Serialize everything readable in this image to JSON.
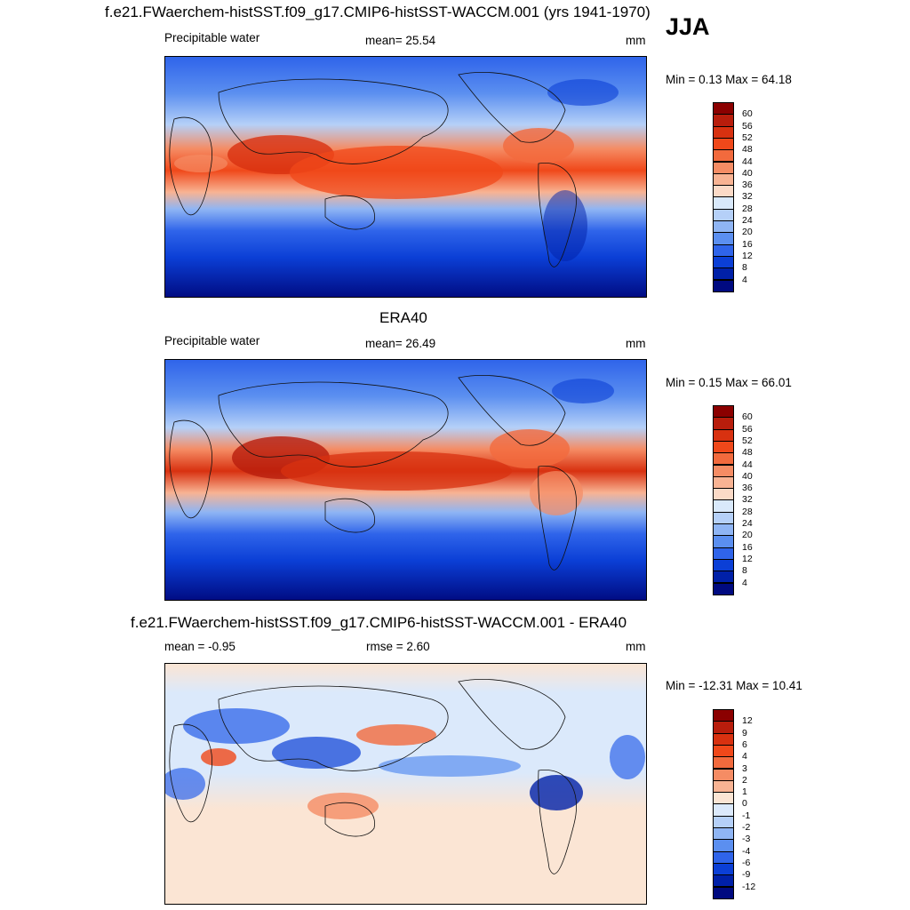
{
  "season": "JJA",
  "panels": [
    {
      "title": "f.e21.FWaerchem-histSST.f09_g17.CMIP6-histSST-WACCM.001 (yrs 1941-1970)",
      "left_label": "Precipitable water",
      "center_label": "mean=  25.54",
      "units": "mm",
      "minmax": "Min =   0.13 Max =  64.18",
      "colorbar": {
        "labels": [
          "60",
          "56",
          "52",
          "48",
          "44",
          "40",
          "36",
          "32",
          "28",
          "24",
          "20",
          "16",
          "12",
          "8",
          "4"
        ],
        "colors": [
          "#8b0000",
          "#b81d0c",
          "#d83110",
          "#f0481a",
          "#f26a3d",
          "#f58c64",
          "#f8b393",
          "#fbdac7",
          "#d9e9fb",
          "#b5d0f8",
          "#8fb5f4",
          "#5b8ff0",
          "#2f64ea",
          "#0b3fd6",
          "#0020a8",
          "#000a80"
        ]
      }
    },
    {
      "title": "ERA40",
      "left_label": "Precipitable water",
      "center_label": "mean=  26.49",
      "units": "mm",
      "minmax": "Min =   0.15 Max =  66.01",
      "colorbar": {
        "labels": [
          "60",
          "56",
          "52",
          "48",
          "44",
          "40",
          "36",
          "32",
          "28",
          "24",
          "20",
          "16",
          "12",
          "8",
          "4"
        ],
        "colors": [
          "#8b0000",
          "#b81d0c",
          "#d83110",
          "#f0481a",
          "#f26a3d",
          "#f58c64",
          "#f8b393",
          "#fbdac7",
          "#d9e9fb",
          "#b5d0f8",
          "#8fb5f4",
          "#5b8ff0",
          "#2f64ea",
          "#0b3fd6",
          "#0020a8",
          "#000a80"
        ]
      }
    },
    {
      "title": "f.e21.FWaerchem-histSST.f09_g17.CMIP6-histSST-WACCM.001 - ERA40",
      "left_label": "mean =  -0.95",
      "center_label": "rmse =   2.60",
      "units": "mm",
      "minmax": "Min = -12.31 Max =  10.41",
      "colorbar": {
        "labels": [
          "12",
          "9",
          "6",
          "4",
          "3",
          "2",
          "1",
          "0",
          "-1",
          "-2",
          "-3",
          "-4",
          "-6",
          "-9",
          "-12"
        ],
        "colors": [
          "#8b0000",
          "#b81d0c",
          "#d83110",
          "#f0481a",
          "#f26a3d",
          "#f58c64",
          "#f8b393",
          "#fbe5d4",
          "#dbe9fb",
          "#b5d0f8",
          "#8fb5f4",
          "#5b8ff0",
          "#2f64ea",
          "#0b3fd6",
          "#0020a8",
          "#000a80"
        ]
      }
    }
  ]
}
